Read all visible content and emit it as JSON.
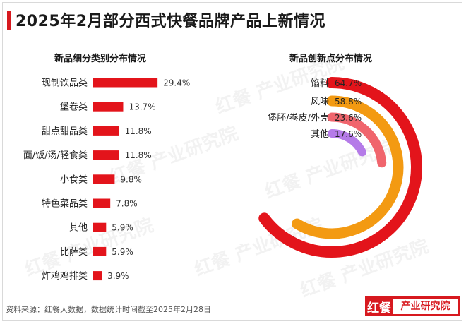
{
  "title": "2025年2月部分西式快餐品牌产品上新情况",
  "source": "资料来源：红餐大数据，数据统计时间截至2025年2月28日",
  "logo": {
    "mark": "红餐",
    "text": "产业研究院"
  },
  "watermark": "红餐 产业研究院",
  "colors": {
    "accent": "#d7191f",
    "bar": "#e3141b",
    "ring_colors": [
      "#e3141b",
      "#f39a12",
      "#f0656d",
      "#b57be8"
    ],
    "track": "#f2f2f2"
  },
  "chart_data": [
    {
      "type": "bar",
      "orientation": "horizontal",
      "title": "新品细分类别分布情况",
      "categories": [
        "现制饮品类",
        "堡卷类",
        "甜点甜品类",
        "面/饭/汤/轻食类",
        "小食类",
        "特色菜品类",
        "其他",
        "比萨类",
        "炸鸡鸡排类"
      ],
      "values": [
        29.4,
        13.7,
        11.8,
        11.8,
        9.8,
        7.8,
        5.9,
        5.9,
        3.9
      ],
      "value_labels": [
        "29.4%",
        "13.7%",
        "11.8%",
        "11.8%",
        "9.8%",
        "7.8%",
        "5.9%",
        "5.9%",
        "3.9%"
      ],
      "xlim": [
        0,
        100
      ]
    },
    {
      "type": "radial-bar",
      "title": "新品创新点分布情况",
      "categories": [
        "馅料",
        "风味",
        "堡胚/卷皮/外壳",
        "其他"
      ],
      "values": [
        64.7,
        58.8,
        23.6,
        17.6
      ],
      "value_labels": [
        "64.7%",
        "58.8%",
        "23.6%",
        "17.6%"
      ],
      "max": 100
    }
  ]
}
